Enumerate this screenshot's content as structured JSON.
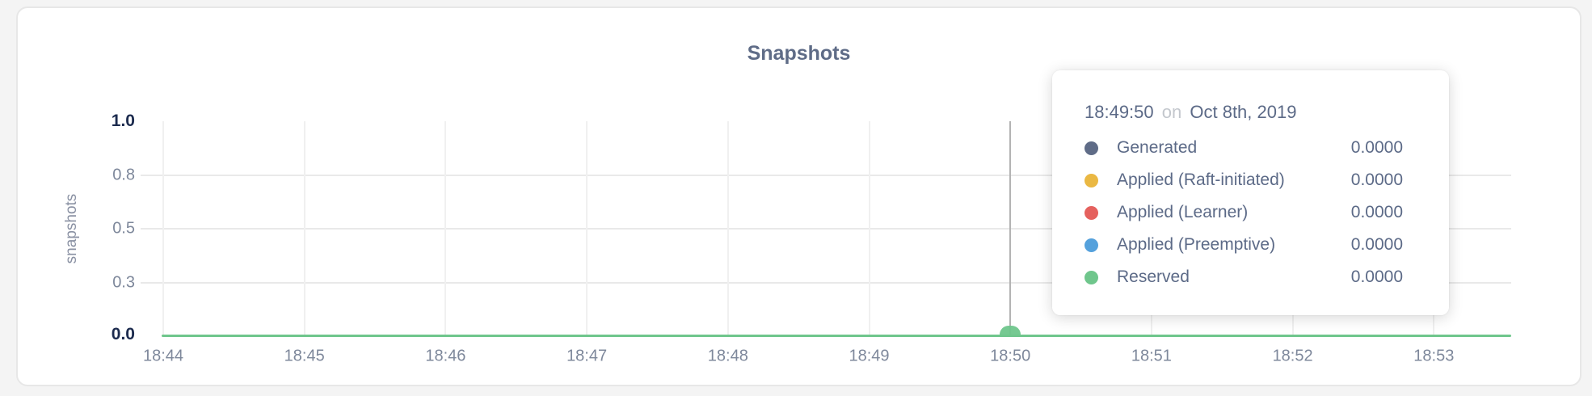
{
  "card": {
    "title": "Snapshots"
  },
  "chart_data": {
    "type": "line",
    "title": "Snapshots",
    "xlabel": "",
    "ylabel": "snapshots",
    "ylim": [
      0,
      1.0
    ],
    "grid": true,
    "legend_position": "hover-tooltip",
    "y_tick_labels": [
      "1.0",
      "0.8",
      "0.5",
      "0.3",
      "0.0"
    ],
    "x": [
      "18:44",
      "18:45",
      "18:46",
      "18:47",
      "18:48",
      "18:49",
      "18:50",
      "18:51",
      "18:52",
      "18:53"
    ],
    "series": [
      {
        "name": "Generated",
        "color": "#5f6c87",
        "values": [
          0,
          0,
          0,
          0,
          0,
          0,
          0,
          0,
          0,
          0
        ]
      },
      {
        "name": "Applied (Raft-initiated)",
        "color": "#eab843",
        "values": [
          0,
          0,
          0,
          0,
          0,
          0,
          0,
          0,
          0,
          0
        ]
      },
      {
        "name": "Applied (Learner)",
        "color": "#e5615e",
        "values": [
          0,
          0,
          0,
          0,
          0,
          0,
          0,
          0,
          0,
          0
        ]
      },
      {
        "name": "Applied (Preemptive)",
        "color": "#55a1dc",
        "values": [
          0,
          0,
          0,
          0,
          0,
          0,
          0,
          0,
          0,
          0
        ]
      },
      {
        "name": "Reserved",
        "color": "#6fc68c",
        "values": [
          0,
          0,
          0,
          0,
          0,
          0,
          0,
          0,
          0,
          0
        ]
      }
    ],
    "hover": {
      "x_tick": "18:50",
      "crosshair_color": "#b3b3b3"
    }
  },
  "tooltip": {
    "time": "18:49:50",
    "on_word": "on",
    "date": "Oct 8th, 2019",
    "rows": [
      {
        "label": "Generated",
        "color": "#5f6c87",
        "value": "0.0000"
      },
      {
        "label": "Applied (Raft-initiated)",
        "color": "#eab843",
        "value": "0.0000"
      },
      {
        "label": "Applied (Learner)",
        "color": "#e5615e",
        "value": "0.0000"
      },
      {
        "label": "Applied (Preemptive)",
        "color": "#55a1dc",
        "value": "0.0000"
      },
      {
        "label": "Reserved",
        "color": "#6fc68c",
        "value": "0.0000"
      }
    ]
  }
}
